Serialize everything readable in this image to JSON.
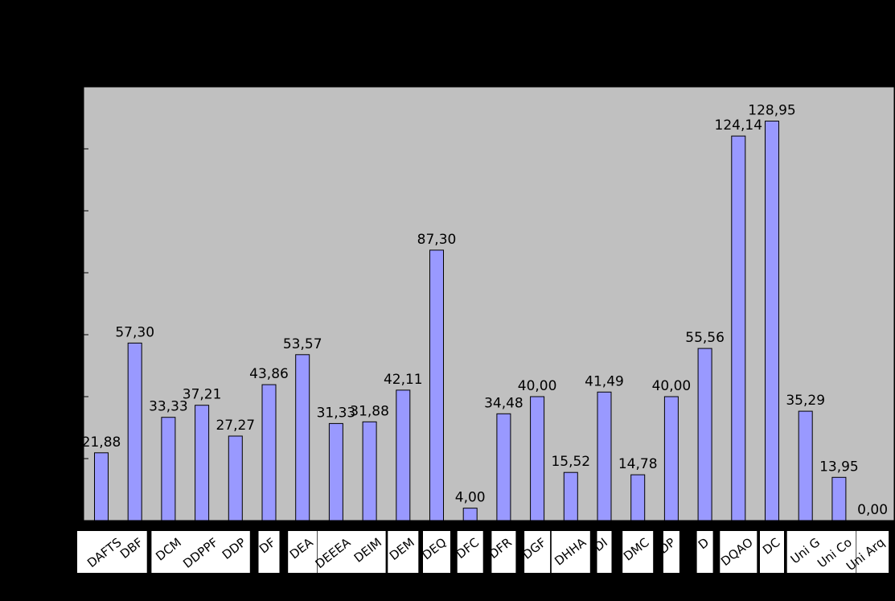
{
  "chart_data": {
    "type": "bar",
    "title": "",
    "xlabel": "",
    "ylabel": "",
    "ylim": [
      0,
      140
    ],
    "grid": true,
    "legend": "none",
    "colors": {
      "bar_fill": "#9999ff",
      "bar_stroke": "#000000",
      "plot_bg": "#c0c0c0",
      "figure_bg": "#000000",
      "tick_bg": "#ffffff"
    },
    "categories": [
      "DAFTS",
      "DBF",
      "DCM",
      "DDPPF",
      "DDP",
      "DF",
      "DEA",
      "DEEEA",
      "DEIM",
      "DEM",
      "DEQ",
      "DFC",
      "DFR",
      "DGF",
      "DHHA",
      "DI",
      "DMC",
      "DP",
      "D",
      "DQAO",
      "DC",
      "Uni G",
      "Uni Co",
      "Uni Arq"
    ],
    "values": [
      21.88,
      57.3,
      33.33,
      37.21,
      27.27,
      43.86,
      53.57,
      31.33,
      31.88,
      42.11,
      87.3,
      4.0,
      34.48,
      40.0,
      15.52,
      41.49,
      14.78,
      40.0,
      55.56,
      124.14,
      128.95,
      35.29,
      13.95,
      0.0
    ],
    "data_labels": [
      "21,88",
      "57,30",
      "33,33",
      "37,21",
      "27,27",
      "43,86",
      "53,57",
      "31,33",
      "31,88",
      "42,11",
      "87,30",
      "4,00",
      "34,48",
      "40,00",
      "15,52",
      "41,49",
      "14,78",
      "40,00",
      "55,56",
      "124,14",
      "128,95",
      "35,29",
      "13,95",
      "0,00"
    ]
  }
}
